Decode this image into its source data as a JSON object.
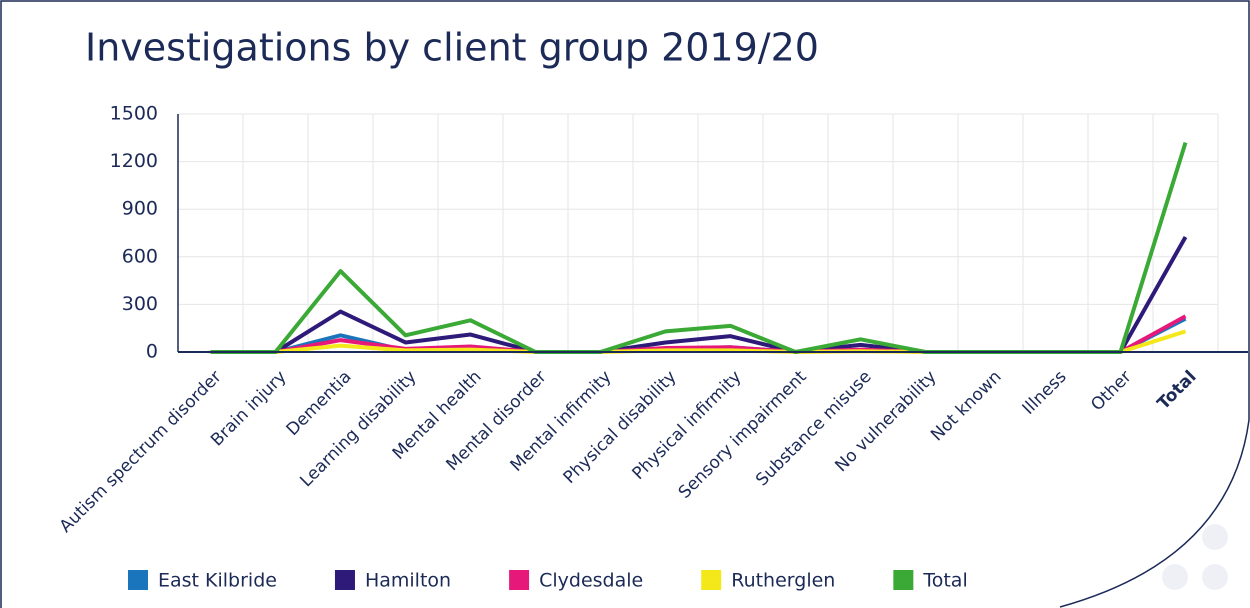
{
  "chart_data": {
    "type": "line",
    "title": "Investigations by client group 2019/20",
    "categories": [
      "Autism spectrum disorder",
      "Brain injury",
      "Dementia",
      "Learning disability",
      "Mental health",
      "Mental disorder",
      "Mental infirmity",
      "Physical disability",
      "Physical infirmity",
      "Sensory impairment",
      "Substance misuse",
      "No vulnerability",
      "Not known",
      "Illness",
      "Other",
      "Total"
    ],
    "series": [
      {
        "name": "East Kilbride",
        "color": "#1a75bc",
        "values": [
          0,
          0,
          105,
          10,
          30,
          0,
          0,
          20,
          30,
          0,
          10,
          0,
          0,
          0,
          0,
          210
        ]
      },
      {
        "name": "Hamilton",
        "color": "#2e1a78",
        "values": [
          0,
          0,
          255,
          60,
          110,
          0,
          0,
          60,
          100,
          0,
          45,
          0,
          0,
          0,
          0,
          725
        ]
      },
      {
        "name": "Clydesdale",
        "color": "#e6197a",
        "values": [
          0,
          0,
          75,
          20,
          35,
          0,
          0,
          25,
          30,
          0,
          15,
          0,
          0,
          0,
          0,
          225
        ]
      },
      {
        "name": "Rutherglen",
        "color": "#f5e81a",
        "values": [
          0,
          0,
          40,
          10,
          15,
          0,
          0,
          10,
          10,
          0,
          5,
          0,
          0,
          0,
          0,
          130
        ]
      },
      {
        "name": "Total",
        "color": "#3aa935",
        "values": [
          0,
          0,
          510,
          105,
          200,
          0,
          0,
          130,
          165,
          0,
          80,
          0,
          0,
          0,
          0,
          1320
        ]
      }
    ],
    "ylim": [
      0,
      1500
    ],
    "yticks": [
      0,
      300,
      600,
      900,
      1200,
      1500
    ],
    "grid": true
  }
}
